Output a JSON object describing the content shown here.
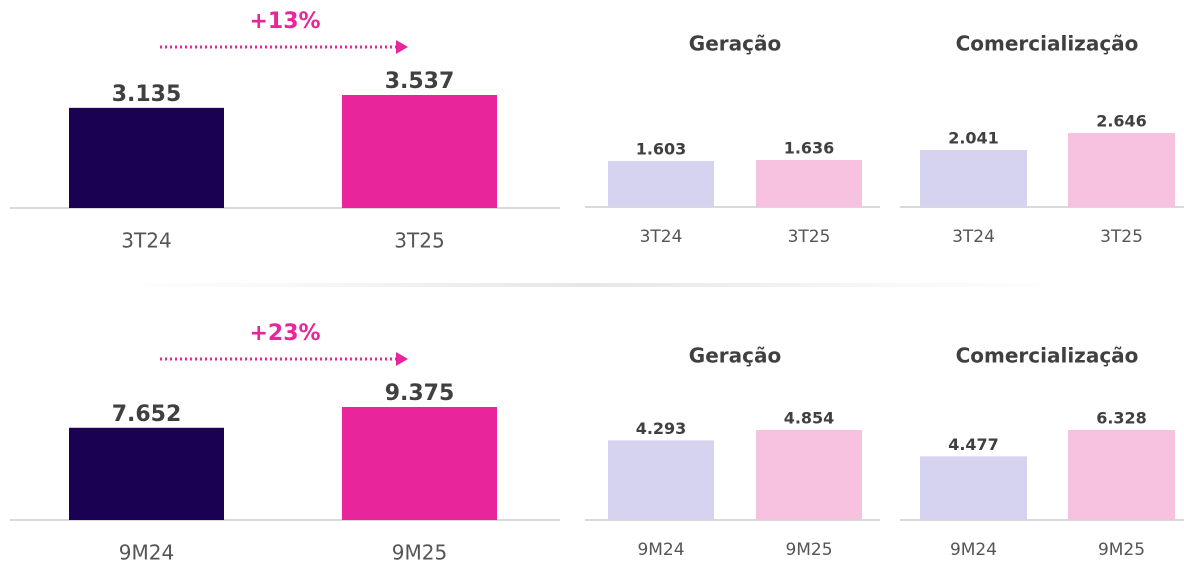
{
  "chart_data": [
    {
      "type": "bar",
      "annotation": "+13%",
      "categories": [
        "3T24",
        "3T25"
      ],
      "values": [
        3135,
        3537
      ],
      "value_labels": [
        "3.135",
        "3.537"
      ],
      "colors": [
        "#1a0152",
        "#e8259a"
      ]
    },
    {
      "type": "bar",
      "title": "Geração",
      "categories": [
        "3T24",
        "3T25"
      ],
      "values": [
        1603,
        1636
      ],
      "value_labels": [
        "1.603",
        "1.636"
      ],
      "colors": [
        "#d5d3f0",
        "#f7c1e0"
      ]
    },
    {
      "type": "bar",
      "title": "Comercialização",
      "categories": [
        "3T24",
        "3T25"
      ],
      "values": [
        2041,
        2646
      ],
      "value_labels": [
        "2.041",
        "2.646"
      ],
      "colors": [
        "#d5d3f0",
        "#f7c1e0"
      ]
    },
    {
      "type": "bar",
      "annotation": "+23%",
      "categories": [
        "9M24",
        "9M25"
      ],
      "values": [
        7652,
        9375
      ],
      "value_labels": [
        "7.652",
        "9.375"
      ],
      "colors": [
        "#1a0152",
        "#e8259a"
      ]
    },
    {
      "type": "bar",
      "title": "Geração",
      "categories": [
        "9M24",
        "9M25"
      ],
      "values": [
        4293,
        4854
      ],
      "value_labels": [
        "4.293",
        "4.854"
      ],
      "colors": [
        "#d5d3f0",
        "#f7c1e0"
      ]
    },
    {
      "type": "bar",
      "title": "Comercialização",
      "categories": [
        "9M24",
        "9M25"
      ],
      "values": [
        4477,
        6328
      ],
      "value_labels": [
        "4.477",
        "6.328"
      ],
      "colors": [
        "#d5d3f0",
        "#f7c1e0"
      ]
    }
  ]
}
